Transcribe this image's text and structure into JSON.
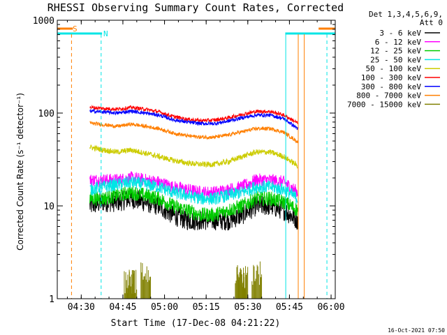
{
  "chart_data": {
    "type": "line",
    "title": "RHESSI Observing Summary Count Rates, Corrected",
    "xlabel": "Start Time (17-Dec-08 04:21:22)",
    "ylabel": "Corrected Count Rate (s⁻¹ detector⁻¹)",
    "yscale": "log",
    "ylim": [
      1,
      1000
    ],
    "xlim": [
      "04:21:22",
      "06:01:30"
    ],
    "x_ticks": [
      "04:30",
      "04:45",
      "05:00",
      "05:15",
      "05:30",
      "05:45",
      "06:00"
    ],
    "y_ticks": [
      "1",
      "10",
      "100",
      "1000"
    ],
    "legend_position": "right",
    "legend_header": [
      "Det 1,3,4,5,6,9,",
      "Att 0"
    ],
    "timestamp": "16-Oct-2021 07:50",
    "flags": [
      {
        "label": "S",
        "color": "#ff7f00",
        "segments": [
          [
            "04:21:22",
            "04:27:00"
          ],
          [
            "05:55:30",
            "06:01:30"
          ]
        ]
      },
      {
        "label": "N",
        "color": "#00e5e5",
        "segments": [
          [
            "04:21:22",
            "04:37:30"
          ],
          [
            "05:43:30",
            "06:01:30"
          ]
        ]
      }
    ],
    "markers": [
      {
        "time": "04:26:30",
        "color": "#ff7f00",
        "style": "dashed"
      },
      {
        "time": "04:37:10",
        "color": "#00e5e5",
        "style": "dashed"
      },
      {
        "time": "05:43:40",
        "color": "#00e5e5",
        "style": "solid"
      },
      {
        "time": "05:48:10",
        "color": "#ff7f00",
        "style": "solid"
      },
      {
        "time": "05:50:20",
        "color": "#ff7f00",
        "style": "solid"
      },
      {
        "time": "05:58:30",
        "color": "#00e5e5",
        "style": "dashed"
      }
    ],
    "times": [
      "04:28",
      "04:33",
      "04:38",
      "04:43",
      "04:48",
      "04:53",
      "04:58",
      "05:03",
      "05:08",
      "05:13",
      "05:18",
      "05:23",
      "05:28",
      "05:33",
      "05:38",
      "05:43",
      "05:48"
    ],
    "series": [
      {
        "name": "3 - 6 keV",
        "color": "#000000",
        "values": [
          null,
          10,
          11,
          11,
          12,
          11,
          10,
          8,
          7,
          7,
          7,
          7,
          8,
          10,
          10,
          9,
          7
        ]
      },
      {
        "name": "6 - 12 keV",
        "color": "#ff00ff",
        "values": [
          null,
          19,
          19,
          19,
          20,
          19,
          18,
          16,
          15,
          14,
          14,
          15,
          16,
          19,
          19,
          18,
          14
        ]
      },
      {
        "name": "12 - 25 keV",
        "color": "#00cc00",
        "values": [
          null,
          12,
          12,
          13,
          14,
          13,
          12,
          10,
          9,
          8,
          8,
          9,
          10,
          12,
          12,
          11,
          9
        ]
      },
      {
        "name": "25 - 50 keV",
        "color": "#00e5e5",
        "values": [
          null,
          15,
          16,
          17,
          18,
          17,
          16,
          14,
          13,
          12,
          12,
          13,
          14,
          16,
          16,
          15,
          12
        ]
      },
      {
        "name": "50 - 100 keV",
        "color": "#cccc00",
        "values": [
          null,
          43,
          40,
          38,
          40,
          37,
          34,
          31,
          29,
          28,
          28,
          30,
          34,
          38,
          38,
          34,
          27
        ]
      },
      {
        "name": "100 - 300 keV",
        "color": "#ff0000",
        "values": [
          null,
          115,
          112,
          110,
          115,
          110,
          103,
          92,
          86,
          83,
          84,
          89,
          97,
          104,
          104,
          95,
          78
        ]
      },
      {
        "name": "300 - 800 keV",
        "color": "#0000ff",
        "values": [
          null,
          105,
          103,
          100,
          105,
          100,
          95,
          85,
          80,
          77,
          77,
          82,
          89,
          95,
          95,
          87,
          68
        ]
      },
      {
        "name": "800 - 7000 keV",
        "color": "#ff7f00",
        "values": [
          null,
          78,
          75,
          72,
          76,
          72,
          68,
          61,
          57,
          55,
          55,
          58,
          63,
          68,
          68,
          62,
          49
        ]
      },
      {
        "name": "7000 - 15000 keV",
        "color": "#808000",
        "values": [
          null,
          null,
          null,
          null,
          1.6,
          1.9,
          null,
          null,
          null,
          null,
          null,
          null,
          1.8,
          2.0,
          null,
          null,
          null
        ]
      }
    ]
  }
}
